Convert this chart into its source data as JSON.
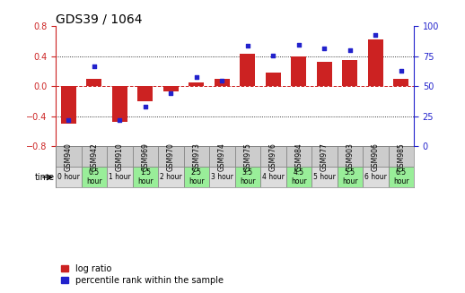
{
  "title": "GDS39 / 1064",
  "samples": [
    "GSM940",
    "GSM942",
    "GSM910",
    "GSM969",
    "GSM970",
    "GSM973",
    "GSM974",
    "GSM975",
    "GSM976",
    "GSM984",
    "GSM977",
    "GSM903",
    "GSM906",
    "GSM985"
  ],
  "time_labels": [
    "0 hour",
    "0.5\nhour",
    "1 hour",
    "1.5\nhour",
    "2 hour",
    "2.5\nhour",
    "3 hour",
    "3.5\nhour",
    "4 hour",
    "4.5\nhour",
    "5 hour",
    "5.5\nhour",
    "6 hour",
    "6.5\nhour"
  ],
  "log_ratio": [
    -0.5,
    0.1,
    -0.47,
    -0.2,
    -0.07,
    0.05,
    0.1,
    0.43,
    0.18,
    0.4,
    0.33,
    0.35,
    0.62,
    0.1
  ],
  "percentile": [
    22,
    67,
    22,
    33,
    44,
    58,
    55,
    84,
    76,
    85,
    82,
    80,
    93,
    63
  ],
  "ylim_left": [
    -0.8,
    0.8
  ],
  "ylim_right": [
    0,
    100
  ],
  "yticks_left": [
    -0.8,
    -0.4,
    0.0,
    0.4,
    0.8
  ],
  "yticks_right": [
    0,
    25,
    50,
    75,
    100
  ],
  "bar_color": "#cc2222",
  "dot_color": "#2222cc",
  "zero_line_color": "#cc2222",
  "bg_color": "#ffffff",
  "plot_bg": "#ffffff",
  "legend_bar_label": "log ratio",
  "legend_dot_label": "percentile rank within the sample",
  "title_fontsize": 10,
  "tick_fontsize": 7,
  "sample_fontsize": 5.5,
  "time_fontsize": 5.5,
  "legend_fontsize": 7,
  "figsize": [
    5.18,
    3.27
  ],
  "dpi": 100
}
